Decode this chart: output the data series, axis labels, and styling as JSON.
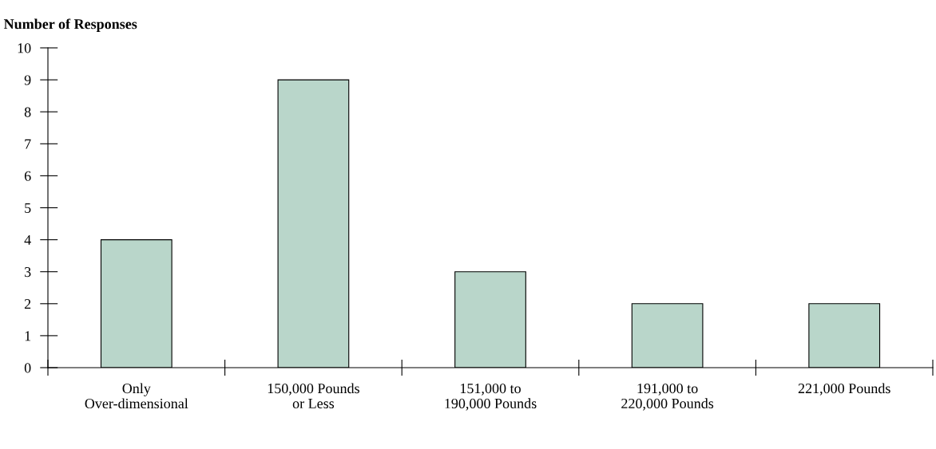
{
  "chart_data": {
    "type": "bar",
    "ylabel": "Number of Responses",
    "categories": [
      "Only\nOver-dimensional",
      "150,000 Pounds\nor Less",
      "151,000 to\n190,000 Pounds",
      "191,000 to\n220,000 Pounds",
      "221,000 Pounds"
    ],
    "values": [
      4,
      9,
      3,
      2,
      2
    ],
    "color": "#b9d6ca",
    "ylim": [
      0,
      10
    ],
    "yticks": [
      0,
      1,
      2,
      3,
      4,
      5,
      6,
      7,
      8,
      9,
      10
    ],
    "grid": false
  }
}
